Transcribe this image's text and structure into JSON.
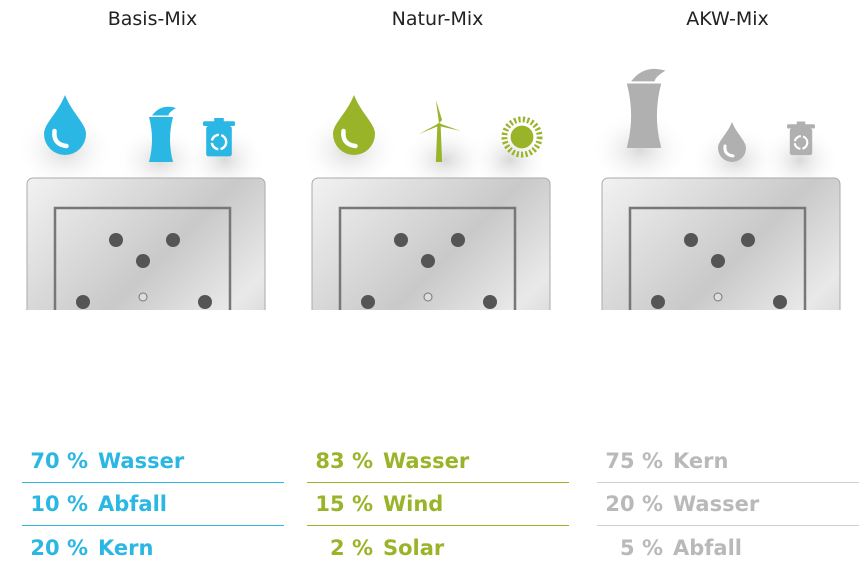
{
  "columns": [
    {
      "title": "Basis-Mix",
      "items": [
        {
          "percent": "70 %",
          "label": "Wasser"
        },
        {
          "percent": "10 %",
          "label": "Abfall"
        },
        {
          "percent": "20 %",
          "label": "Kern"
        }
      ]
    },
    {
      "title": "Natur-Mix",
      "items": [
        {
          "percent": "83 %",
          "label": "Wasser"
        },
        {
          "percent": "15 %",
          "label": "Wind"
        },
        {
          "percent": "2 %",
          "label": "Solar"
        }
      ]
    },
    {
      "title": "AKW-Mix",
      "items": [
        {
          "percent": "75 %",
          "label": "Kern"
        },
        {
          "percent": "20 %",
          "label": "Wasser"
        },
        {
          "percent": "5 %",
          "label": "Abfall"
        }
      ]
    }
  ]
}
